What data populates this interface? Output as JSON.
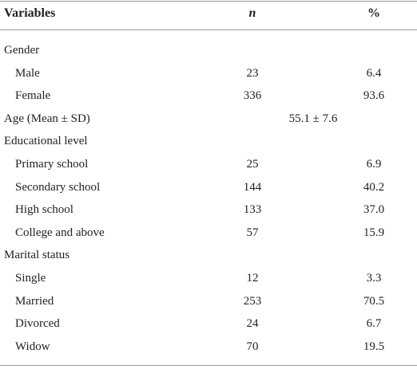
{
  "table": {
    "header": [
      "Variables",
      "n",
      "%"
    ],
    "rows": [
      [
        "Gender"
      ],
      [
        "Male",
        "23",
        "6.4"
      ],
      [
        "Female",
        "336",
        "93.6"
      ],
      [
        "Age (Mean ± SD)",
        "55.1 ± 7.6"
      ],
      [
        "Educational level"
      ],
      [
        "Primary school",
        "25",
        "6.9"
      ],
      [
        "Secondary school",
        "144",
        "40.2"
      ],
      [
        "High school",
        "133",
        "37.0"
      ],
      [
        "College and above",
        "57",
        "15.9"
      ],
      [
        "Marital status"
      ],
      [
        "Single",
        "12",
        "3.3"
      ],
      [
        "Married",
        "253",
        "70.5"
      ],
      [
        "Divorced",
        "24",
        "6.7"
      ],
      [
        "Widow",
        "70",
        "19.5"
      ]
    ]
  }
}
